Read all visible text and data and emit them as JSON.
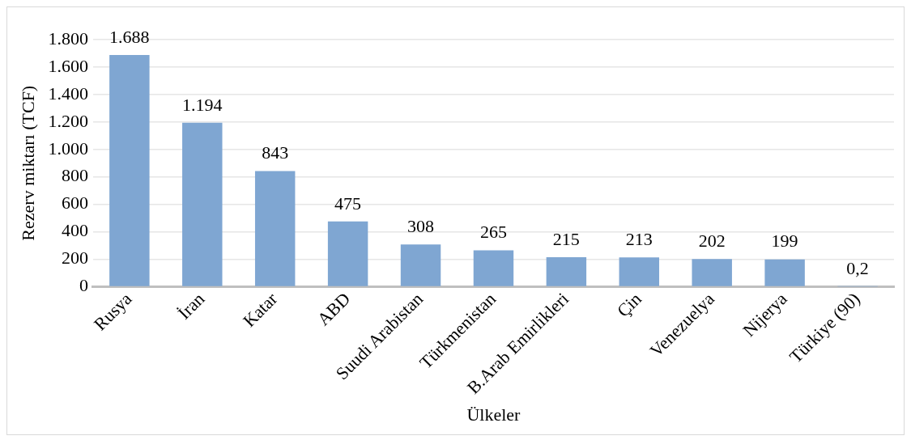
{
  "chart_data": {
    "type": "bar",
    "xlabel": "Ülkeler",
    "ylabel": "Rezerv miktarı (TCF)",
    "categories": [
      "Rusya",
      "İran",
      "Katar",
      "ABD",
      "Suudi Arabistan",
      "Türkmenistan",
      "B.Arab Emirlikleri",
      "Çin",
      "Venezuelya",
      "Nijerya",
      "Türkiye (90)"
    ],
    "values": [
      1688,
      1194,
      843,
      475,
      308,
      265,
      215,
      213,
      202,
      199,
      0.2
    ],
    "value_labels": [
      "1.688",
      "1.194",
      "843",
      "475",
      "308",
      "265",
      "215",
      "213",
      "202",
      "199",
      "0,2"
    ],
    "color": "#7fa6d2",
    "ylim": [
      0,
      1800
    ],
    "yticks": [
      0,
      {
        "value": 200,
        "label": "200"
      },
      {
        "value": 400,
        "label": "400"
      },
      {
        "value": 600,
        "label": "600"
      },
      {
        "value": 800,
        "label": "800"
      },
      {
        "value": 1000,
        "label": "1.000"
      },
      {
        "value": 1200,
        "label": "1.200"
      },
      {
        "value": 1400,
        "label": "1.400"
      },
      {
        "value": 1600,
        "label": "1.600"
      },
      {
        "value": 1800,
        "label": "1.800"
      }
    ],
    "grid": "y",
    "legend": false
  }
}
